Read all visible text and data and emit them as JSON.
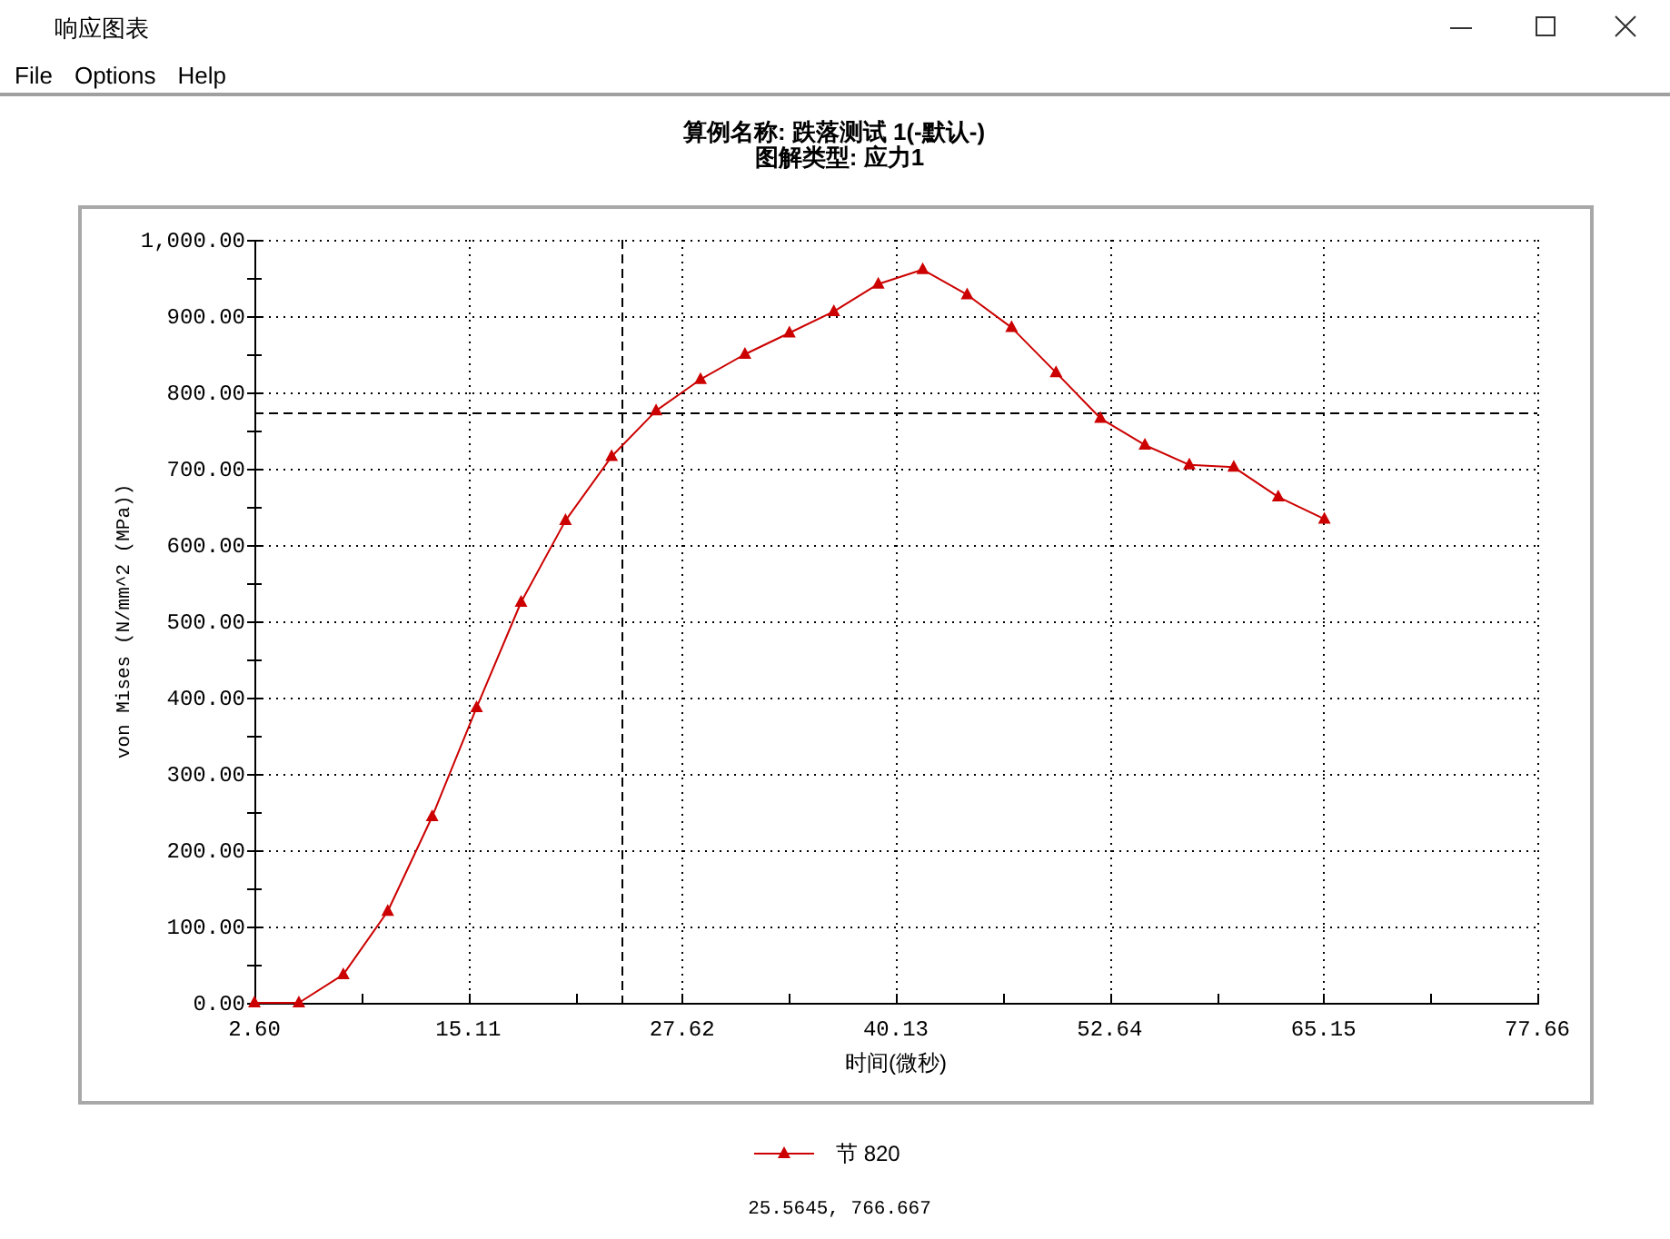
{
  "chart_data": {
    "type": "line",
    "title": "算例名称: 跌落测试 1(-默认-)",
    "subtitle": "图解类型: 应力1",
    "xlabel": "时间(微秒)",
    "ylabel": "von Mises (N/mm^2 (MPa))",
    "annotations": [
      "响应图表",
      "File",
      "Options",
      "Help",
      "25.5645, 766.667"
    ],
    "x": [
      2.6,
      5.2,
      7.8,
      10.4,
      13.0,
      15.6,
      18.2,
      20.8,
      23.5,
      26.1,
      28.7,
      31.3,
      33.9,
      36.5,
      39.1,
      41.7,
      44.3,
      46.9,
      49.5,
      52.1,
      54.7,
      57.3,
      59.9,
      62.5,
      65.2
    ],
    "series": [
      {
        "name": "节 820",
        "color": "#cc0000",
        "values": [
          0,
          0,
          37,
          120,
          244,
          387,
          525,
          632,
          716,
          776,
          817,
          850,
          878,
          906,
          942,
          961,
          928,
          885,
          826,
          766,
          731,
          705,
          702,
          663,
          634
        ]
      }
    ],
    "xlim": [
      2.6,
      77.66
    ],
    "xticks": [
      {
        "value": 2.6,
        "label": "2.60"
      },
      {
        "value": 8.86,
        "label": null
      },
      {
        "value": 15.11,
        "label": "15.11"
      },
      {
        "value": 21.37,
        "label": null
      },
      {
        "value": 27.62,
        "label": "27.62"
      },
      {
        "value": 33.88,
        "label": null
      },
      {
        "value": 40.13,
        "label": "40.13"
      },
      {
        "value": 46.39,
        "label": null
      },
      {
        "value": 52.64,
        "label": "52.64"
      },
      {
        "value": 58.9,
        "label": null
      },
      {
        "value": 65.15,
        "label": "65.15"
      },
      {
        "value": 71.41,
        "label": null
      },
      {
        "value": 77.66,
        "label": "77.66"
      }
    ],
    "ylim": [
      0,
      1000
    ],
    "yticks": [
      {
        "value": 0,
        "label": "0.00"
      },
      {
        "value": 50,
        "label": null
      },
      {
        "value": 100,
        "label": "100.00"
      },
      {
        "value": 150,
        "label": null
      },
      {
        "value": 200,
        "label": "200.00"
      },
      {
        "value": 250,
        "label": null
      },
      {
        "value": 300,
        "label": "300.00"
      },
      {
        "value": 350,
        "label": null
      },
      {
        "value": 400,
        "label": "400.00"
      },
      {
        "value": 450,
        "label": null
      },
      {
        "value": 500,
        "label": "500.00"
      },
      {
        "value": 550,
        "label": null
      },
      {
        "value": 600,
        "label": "600.00"
      },
      {
        "value": 650,
        "label": null
      },
      {
        "value": 700,
        "label": "700.00"
      },
      {
        "value": 750,
        "label": null
      },
      {
        "value": 800,
        "label": "800.00"
      },
      {
        "value": 850,
        "label": null
      },
      {
        "value": 900,
        "label": "900.00"
      },
      {
        "value": 950,
        "label": null
      },
      {
        "value": 1000,
        "label": "1,000.00"
      }
    ],
    "ref_lines": [
      {
        "axis": "x",
        "value": 24.1,
        "color": "#000000",
        "line_style": "dashed"
      },
      {
        "axis": "y",
        "value": 774,
        "color": "#000000",
        "line_style": "dashed"
      }
    ],
    "grid": true,
    "legend": "bottom",
    "marker": "triangle",
    "line_style": "solid"
  }
}
